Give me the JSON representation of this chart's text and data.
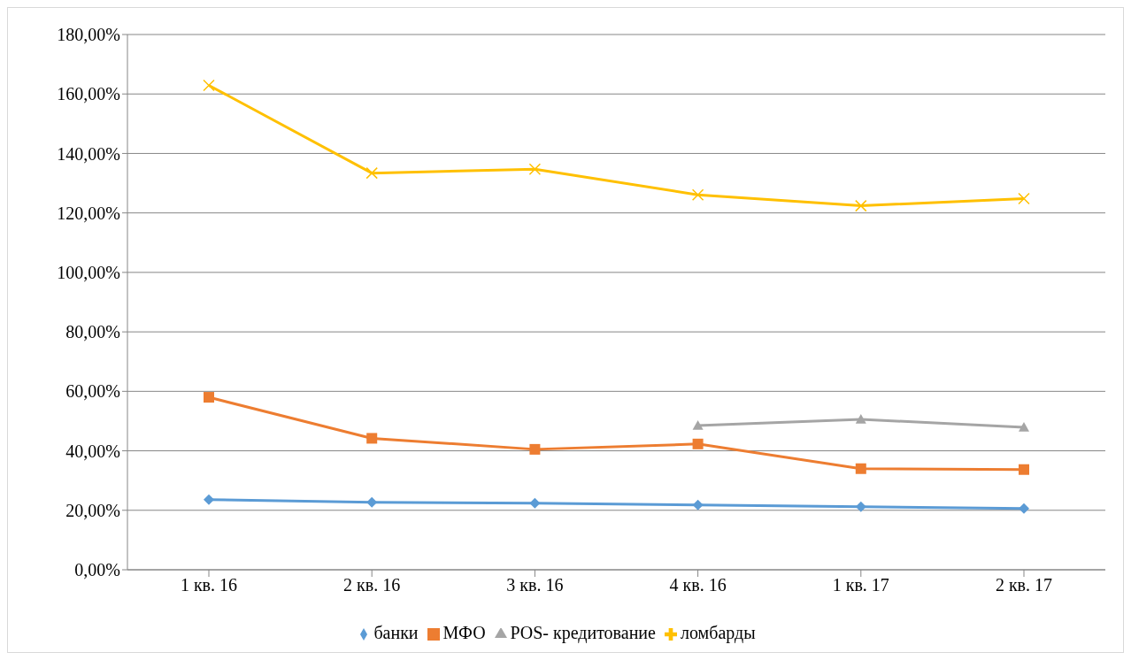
{
  "chart_data": {
    "type": "line",
    "categories": [
      "1 кв. 16",
      "2 кв. 16",
      "3 кв. 16",
      "4 кв. 16",
      "1 кв. 17",
      "2 кв. 17"
    ],
    "series": [
      {
        "name": "банки",
        "color": "#5b9bd5",
        "marker": "diamond",
        "values": [
          23.6,
          22.7,
          22.4,
          21.8,
          21.2,
          20.6
        ]
      },
      {
        "name": "МФО",
        "color": "#ed7d31",
        "marker": "square",
        "values": [
          58.0,
          44.2,
          40.5,
          42.3,
          34.0,
          33.7
        ]
      },
      {
        "name": "POS- кредитование",
        "color": "#a5a5a5",
        "marker": "triangle",
        "values": [
          null,
          null,
          null,
          48.5,
          50.6,
          47.9
        ]
      },
      {
        "name": "ломбарды",
        "color": "#ffc000",
        "marker": "cross",
        "values": [
          162.9,
          133.4,
          134.7,
          126.1,
          122.4,
          124.8
        ]
      }
    ],
    "ylim": [
      0,
      180
    ],
    "yticks": [
      {
        "value": 0,
        "label": "0,00%"
      },
      {
        "value": 20,
        "label": "20,00%"
      },
      {
        "value": 40,
        "label": "40,00%"
      },
      {
        "value": 60,
        "label": "60,00%"
      },
      {
        "value": 80,
        "label": "80,00%"
      },
      {
        "value": 100,
        "label": "100,00%"
      },
      {
        "value": 120,
        "label": "120,00%"
      },
      {
        "value": 140,
        "label": "140,00%"
      },
      {
        "value": 160,
        "label": "160,00%"
      },
      {
        "value": 180,
        "label": "180,00%"
      }
    ],
    "grid": "y",
    "legend": "bottom"
  }
}
